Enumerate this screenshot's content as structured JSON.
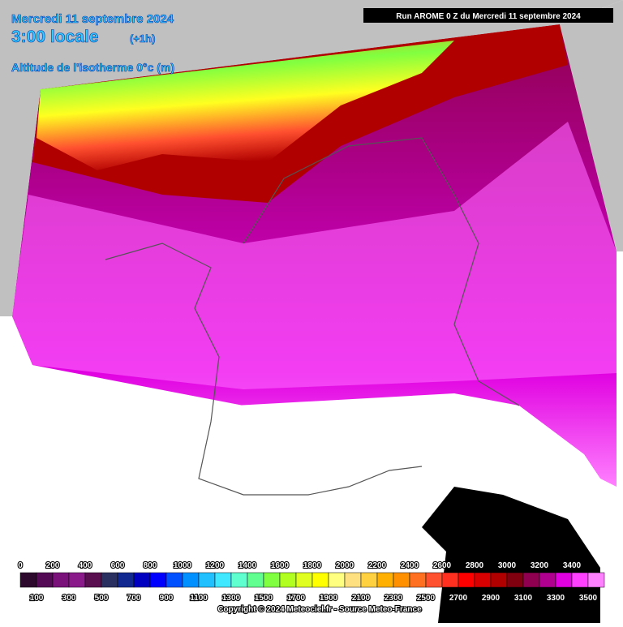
{
  "header": {
    "date": "Mercredi 11 septembre 2024",
    "time": "3:00 locale",
    "offset": "(+1h)",
    "field": "Altitude de l'isotherme 0°c (m)",
    "run": "Run AROME 0 Z du Mercredi 11 septembre 2024"
  },
  "legend": {
    "ticks": [
      0,
      100,
      200,
      300,
      400,
      500,
      600,
      700,
      800,
      900,
      1000,
      1100,
      1200,
      1300,
      1400,
      1500,
      1600,
      1700,
      1800,
      1900,
      2000,
      2100,
      2200,
      2300,
      2400,
      2500,
      2600,
      2700,
      2800,
      2900,
      3000,
      3100,
      3200,
      3300,
      3400,
      3500
    ],
    "colors": [
      "#2d0a2d",
      "#550a55",
      "#7a107a",
      "#8a1a8a",
      "#5a1050",
      "#2a3060",
      "#102890",
      "#0000c0",
      "#0000ff",
      "#0050ff",
      "#0090ff",
      "#20c0ff",
      "#40e8ff",
      "#60ffd0",
      "#60ff90",
      "#80ff40",
      "#b0ff20",
      "#e0ff20",
      "#ffff00",
      "#ffff80",
      "#ffe080",
      "#ffd040",
      "#ffb000",
      "#ff9000",
      "#ff7020",
      "#ff5030",
      "#ff3020",
      "#ff0000",
      "#d80000",
      "#b00000",
      "#800010",
      "#900050",
      "#b00090",
      "#e000e0",
      "#ff40ff",
      "#ff80ff"
    ]
  },
  "footer": {
    "copyright": "Copyright © 2024 Meteociel.fr - Source Meteo-France"
  }
}
